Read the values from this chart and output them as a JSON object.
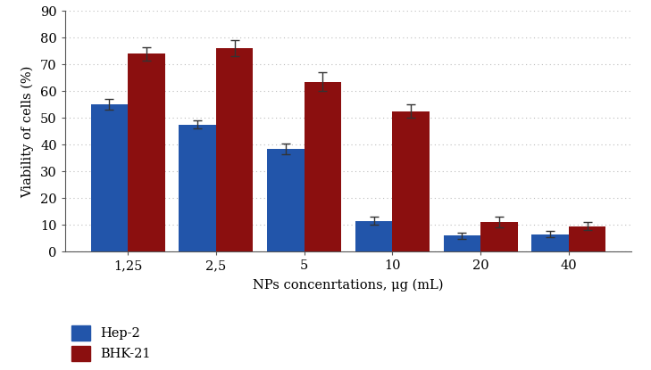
{
  "categories": [
    "1,25",
    "2,5",
    "5",
    "10",
    "20",
    "40"
  ],
  "hep2_values": [
    55,
    47.5,
    38.5,
    11.5,
    6,
    6.5
  ],
  "hep2_errors": [
    2,
    1.5,
    2,
    1.5,
    1.2,
    1.2
  ],
  "bhk21_values": [
    74,
    76,
    63.5,
    52.5,
    11,
    9.5
  ],
  "bhk21_errors": [
    2.5,
    3,
    3.5,
    2.5,
    2,
    1.5
  ],
  "hep2_color": "#2255aa",
  "bhk21_color": "#8b0f0f",
  "bar_width": 0.42,
  "xlabel": "NPs concenrtations, μg (mL)",
  "ylabel": "Viability of cells (%)",
  "ylim": [
    0,
    90
  ],
  "yticks": [
    0,
    10,
    20,
    30,
    40,
    50,
    60,
    70,
    80,
    90
  ],
  "legend_labels": [
    "Hep-2",
    "BHK-21"
  ],
  "background_color": "#ffffff",
  "grid_color": "#bbbbbb"
}
